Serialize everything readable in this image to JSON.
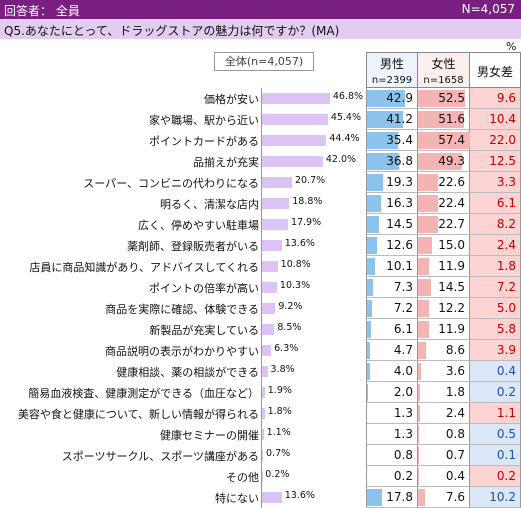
{
  "header": {
    "left": "回答者： 全員",
    "right": "N=4,057"
  },
  "question": "Q5.あなたにとって、ドラッグストアの魅力は何ですか？(MA)",
  "unit": "%",
  "total_label": "全体(n=4,057)",
  "columns": {
    "male": {
      "title": "男性",
      "n": "n=2399"
    },
    "female": {
      "title": "女性",
      "n": "n=1658"
    },
    "diff": {
      "title": "男女差"
    }
  },
  "colors": {
    "header_bg": "#7a1f82",
    "question_bg": "#e2ccf0",
    "total_bar": "#dcc3f5",
    "male_bar": "#8cc3ec",
    "female_bar": "#f5b4b4",
    "diff_female": "#fbd3d3",
    "diff_male": "#dbe7f7"
  },
  "chart_data": {
    "type": "bar",
    "categories": [
      "価格が安い",
      "家や職場、駅から近い",
      "ポイントカードがある",
      "品揃えが充実",
      "スーパー、コンビニの代わりになる",
      "明るく、清潔な店内",
      "広く、停めやすい駐車場",
      "薬剤師、登録販売者がいる",
      "店員に商品知識があり、アドバイスしてくれる",
      "ポイントの倍率が高い",
      "商品を実際に確認、体験できる",
      "新製品が充実している",
      "商品説明の表示がわかりやすい",
      "健康相談、薬の相談ができる",
      "簡易血液検査、健康測定ができる（血圧など）",
      "美容や食と健康について、新しい情報が得られる",
      "健康セミナーの開催",
      "スポーツサークル、スポーツ講座がある",
      "その他",
      "特にない"
    ],
    "series": [
      {
        "name": "全体(n=4,057)",
        "values": [
          46.8,
          45.4,
          44.4,
          42.0,
          20.7,
          18.8,
          17.9,
          13.6,
          10.8,
          10.3,
          9.2,
          8.5,
          6.3,
          3.8,
          1.9,
          1.8,
          1.1,
          0.7,
          0.2,
          13.6
        ],
        "labels": [
          "46.8%",
          "45.4%",
          "44.4%",
          "42.0%",
          "20.7%",
          "18.8%",
          "17.9%",
          "13.6%",
          "10.8%",
          "10.3%",
          "9.2%",
          "8.5%",
          "6.3%",
          "3.8%",
          "1.9%",
          "1.8%",
          "1.1%",
          "0.7%",
          "0.2%",
          "13.6%"
        ]
      },
      {
        "name": "男性",
        "values": [
          42.9,
          41.2,
          35.4,
          36.8,
          19.3,
          16.3,
          14.5,
          12.6,
          10.1,
          7.3,
          7.2,
          6.1,
          4.7,
          4.0,
          2.0,
          1.3,
          1.3,
          0.8,
          0.2,
          17.8
        ],
        "labels": [
          "42.9",
          "41.2",
          "35.4",
          "36.8",
          "19.3",
          "16.3",
          "14.5",
          "12.6",
          "10.1",
          "7.3",
          "7.2",
          "6.1",
          "4.7",
          "4.0",
          "2.0",
          "1.3",
          "1.3",
          "0.8",
          "0.2",
          "17.8"
        ]
      },
      {
        "name": "女性",
        "values": [
          52.5,
          51.6,
          57.4,
          49.3,
          22.6,
          22.4,
          22.7,
          15.0,
          11.9,
          14.5,
          12.2,
          11.9,
          8.6,
          3.6,
          1.8,
          2.4,
          0.8,
          0.7,
          0.4,
          7.6
        ],
        "labels": [
          "52.5",
          "51.6",
          "57.4",
          "49.3",
          "22.6",
          "22.4",
          "22.7",
          "15.0",
          "11.9",
          "14.5",
          "12.2",
          "11.9",
          "8.6",
          "3.6",
          "1.8",
          "2.4",
          "0.8",
          "0.7",
          "0.4",
          "7.6"
        ]
      },
      {
        "name": "男女差",
        "values": [
          9.6,
          10.4,
          22.0,
          12.5,
          3.3,
          6.1,
          8.2,
          2.4,
          1.8,
          7.2,
          5.0,
          5.8,
          3.9,
          0.4,
          0.2,
          1.1,
          0.5,
          0.1,
          0.2,
          10.2
        ],
        "labels": [
          "9.6",
          "10.4",
          "22.0",
          "12.5",
          "3.3",
          "6.1",
          "8.2",
          "2.4",
          "1.8",
          "7.2",
          "5.0",
          "5.8",
          "3.9",
          "0.4",
          "0.2",
          "1.1",
          "0.5",
          "0.1",
          "0.2",
          "10.2"
        ],
        "higher": [
          "female",
          "female",
          "female",
          "female",
          "female",
          "female",
          "female",
          "female",
          "female",
          "female",
          "female",
          "female",
          "female",
          "male",
          "male",
          "female",
          "male",
          "male",
          "female",
          "male"
        ]
      }
    ],
    "xlim": [
      0,
      60
    ]
  }
}
